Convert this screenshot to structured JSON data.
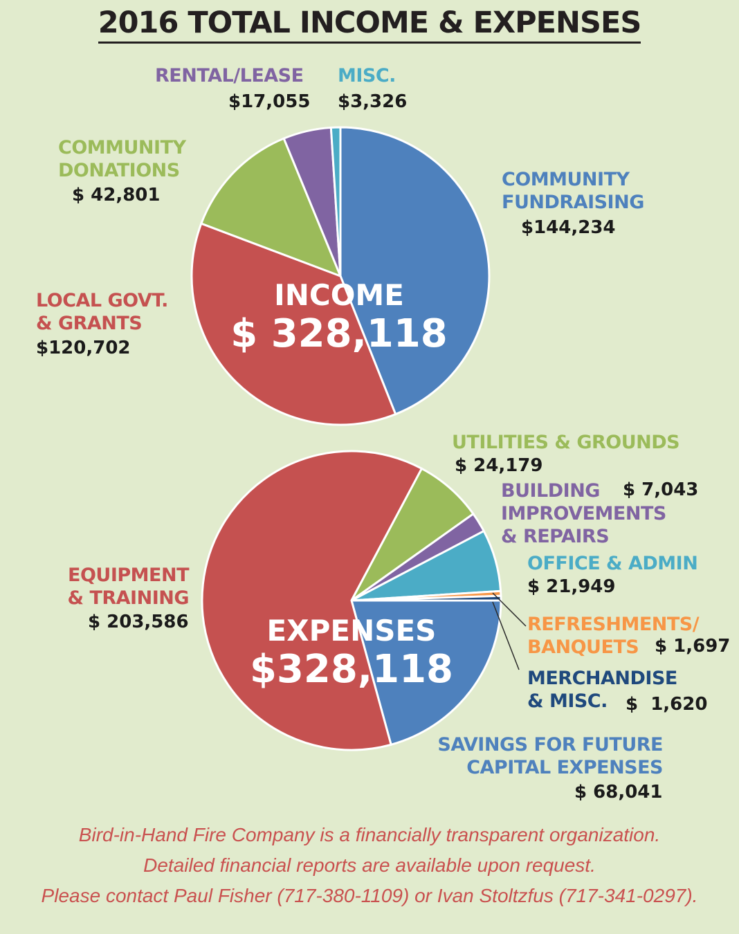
{
  "title": "2016 TOTAL INCOME & EXPENSES",
  "footer": [
    "Bird-in-Hand Fire Company is a financially transparent organization.",
    "Detailed financial reports are available upon request.",
    "Please contact Paul Fisher (717-380-1109) or Ivan Stoltzfus (717-341-0297)."
  ],
  "chart_data": [
    {
      "type": "pie",
      "center_label": "INCOME",
      "center_value": "$ 328,118",
      "slices": [
        {
          "label_lines": [
            "COMMUNITY",
            "FUNDRAISING"
          ],
          "value_text": "$144,234",
          "value": 144234,
          "color": "#4e81bd"
        },
        {
          "label_lines": [
            "LOCAL GOVT.",
            "& GRANTS"
          ],
          "value_text": "$120,702",
          "value": 120702,
          "color": "#c55150"
        },
        {
          "label_lines": [
            "COMMUNITY",
            "DONATIONS"
          ],
          "value_text": "$ 42,801",
          "value": 42801,
          "color": "#9bbb5a"
        },
        {
          "label_lines": [
            "RENTAL/LEASE"
          ],
          "value_text": "$17,055",
          "value": 17055,
          "color": "#8064a2"
        },
        {
          "label_lines": [
            "MISC."
          ],
          "value_text": "$3,326",
          "value": 3326,
          "color": "#4bacc6"
        }
      ]
    },
    {
      "type": "pie",
      "center_label": "EXPENSES",
      "center_value": "$328,118",
      "slices": [
        {
          "label_lines": [
            "SAVINGS FOR FUTURE",
            "CAPITAL EXPENSES"
          ],
          "value_text": "$ 68,041",
          "value": 68041,
          "color": "#4e81bd"
        },
        {
          "label_lines": [
            "EQUIPMENT",
            "& TRAINING"
          ],
          "value_text": "$ 203,586",
          "value": 203586,
          "color": "#c55150"
        },
        {
          "label_lines": [
            "UTILITIES & GROUNDS"
          ],
          "value_text": "$ 24,179",
          "value": 24179,
          "color": "#9bbb5a"
        },
        {
          "label_lines": [
            "BUILDING",
            "IMPROVEMENTS",
            "& REPAIRS"
          ],
          "value_text": "$ 7,043",
          "value": 7043,
          "color": "#8064a2"
        },
        {
          "label_lines": [
            "OFFICE & ADMIN"
          ],
          "value_text": "$ 21,949",
          "value": 21949,
          "color": "#4bacc6"
        },
        {
          "label_lines": [
            "REFRESHMENTS/",
            "BANQUETS"
          ],
          "value_text": "$ 1,697",
          "value": 1697,
          "color": "#f79646"
        },
        {
          "label_lines": [
            "MERCHANDISE",
            "& MISC."
          ],
          "value_text": "$  1,620",
          "value": 1620,
          "color": "#1f497d"
        }
      ]
    }
  ]
}
